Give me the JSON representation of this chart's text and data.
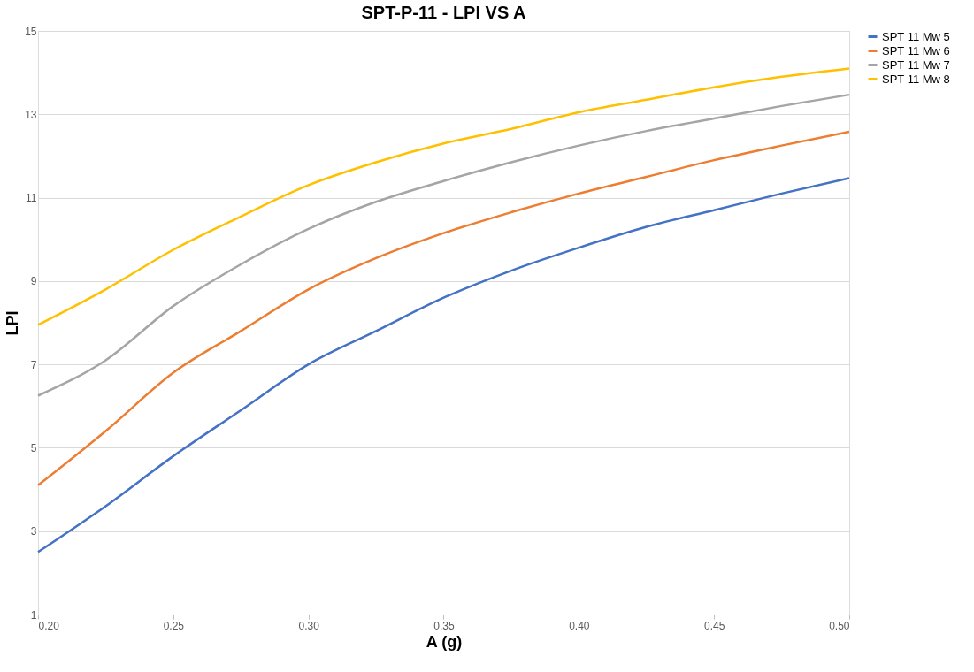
{
  "chart_data": {
    "type": "line",
    "title": "SPT-P-11 - LPI VS A",
    "xlabel": "A (g)",
    "ylabel": "LPI",
    "x": [
      0.2,
      0.225,
      0.25,
      0.275,
      0.3,
      0.325,
      0.35,
      0.375,
      0.4,
      0.425,
      0.45,
      0.475,
      0.5
    ],
    "series": [
      {
        "name": "SPT 11 Mw 5",
        "color": "#4472c4",
        "values": [
          2.5,
          3.6,
          4.8,
          5.9,
          7.0,
          7.8,
          8.6,
          9.25,
          9.8,
          10.3,
          10.7,
          11.1,
          11.47
        ]
      },
      {
        "name": "SPT 11 Mw 6",
        "color": "#ed7d31",
        "values": [
          4.1,
          5.4,
          6.8,
          7.8,
          8.8,
          9.55,
          10.15,
          10.65,
          11.1,
          11.5,
          11.9,
          12.25,
          12.58
        ]
      },
      {
        "name": "SPT 11 Mw 7",
        "color": "#a5a5a5",
        "values": [
          6.25,
          7.1,
          8.4,
          9.4,
          10.25,
          10.9,
          11.4,
          11.85,
          12.25,
          12.6,
          12.9,
          13.2,
          13.47
        ]
      },
      {
        "name": "SPT 11 Mw 8",
        "color": "#ffc000",
        "values": [
          7.95,
          8.8,
          9.75,
          10.55,
          11.3,
          11.85,
          12.3,
          12.65,
          13.05,
          13.35,
          13.65,
          13.9,
          14.1
        ]
      }
    ],
    "xlim": [
      0.2,
      0.5
    ],
    "xticks": [
      {
        "value": 0.2,
        "label": "0.20"
      },
      0.25,
      {
        "value": 0.3,
        "label": "0.30"
      },
      0.35,
      {
        "value": 0.4,
        "label": "0.40"
      },
      0.45,
      {
        "value": 0.5,
        "label": "0.50"
      }
    ],
    "ylim": [
      1,
      15
    ],
    "yticks": [
      1,
      3,
      5,
      7,
      9,
      11,
      13,
      15
    ],
    "grid": "y",
    "legend": "right",
    "marker": "none",
    "line_style": "solid"
  }
}
